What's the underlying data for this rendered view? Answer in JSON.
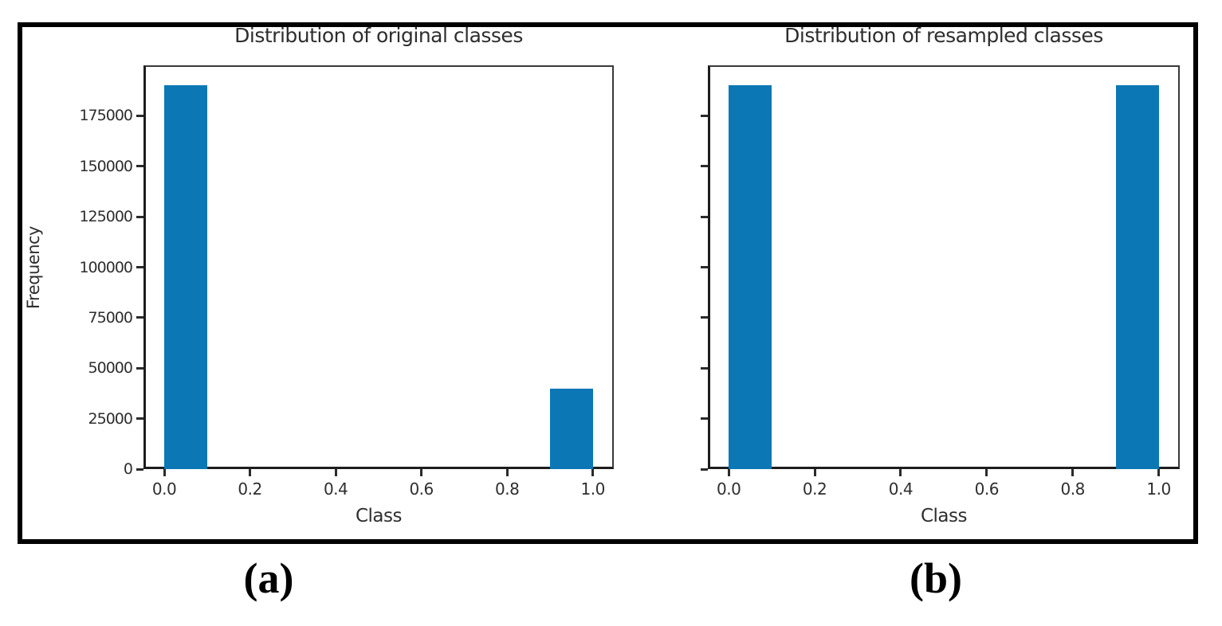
{
  "figure": {
    "background_color": "#ffffff",
    "border_color": "#000000",
    "panel_labels": [
      {
        "label": "(a)"
      },
      {
        "label": "(b)"
      }
    ]
  },
  "chart_data": [
    {
      "type": "bar",
      "title": "Distribution of original classes",
      "xlabel": "Class",
      "ylabel": "Frequency",
      "bar_color": "#0b78b5",
      "bars": [
        {
          "x_start": 0.0,
          "x_end": 0.1,
          "value": 190000
        },
        {
          "x_start": 0.9,
          "x_end": 1.0,
          "value": 40000
        }
      ],
      "xticks": [
        0.0,
        0.2,
        0.4,
        0.6,
        0.8,
        1.0
      ],
      "xtick_labels": [
        "0.0",
        "0.2",
        "0.4",
        "0.6",
        "0.8",
        "1.0"
      ],
      "yticks": [
        0,
        25000,
        50000,
        75000,
        100000,
        125000,
        150000,
        175000
      ],
      "ytick_labels": [
        "0",
        "25000",
        "50000",
        "75000",
        "100000",
        "125000",
        "150000",
        "175000"
      ],
      "show_ytick_labels": true,
      "xlim": [
        -0.0485,
        1.049
      ],
      "ylim": [
        0,
        200000
      ],
      "grid": false
    },
    {
      "type": "bar",
      "title": "Distribution of resampled classes",
      "xlabel": "Class",
      "ylabel": "",
      "bar_color": "#0b78b5",
      "bars": [
        {
          "x_start": 0.0,
          "x_end": 0.1,
          "value": 190000
        },
        {
          "x_start": 0.9,
          "x_end": 1.0,
          "value": 190000
        }
      ],
      "xticks": [
        0.0,
        0.2,
        0.4,
        0.6,
        0.8,
        1.0
      ],
      "xtick_labels": [
        "0.0",
        "0.2",
        "0.4",
        "0.6",
        "0.8",
        "1.0"
      ],
      "yticks": [
        0,
        25000,
        50000,
        75000,
        100000,
        125000,
        150000,
        175000
      ],
      "ytick_labels": [],
      "show_ytick_labels": false,
      "xlim": [
        -0.0485,
        1.049
      ],
      "ylim": [
        0,
        200000
      ],
      "grid": false
    }
  ]
}
